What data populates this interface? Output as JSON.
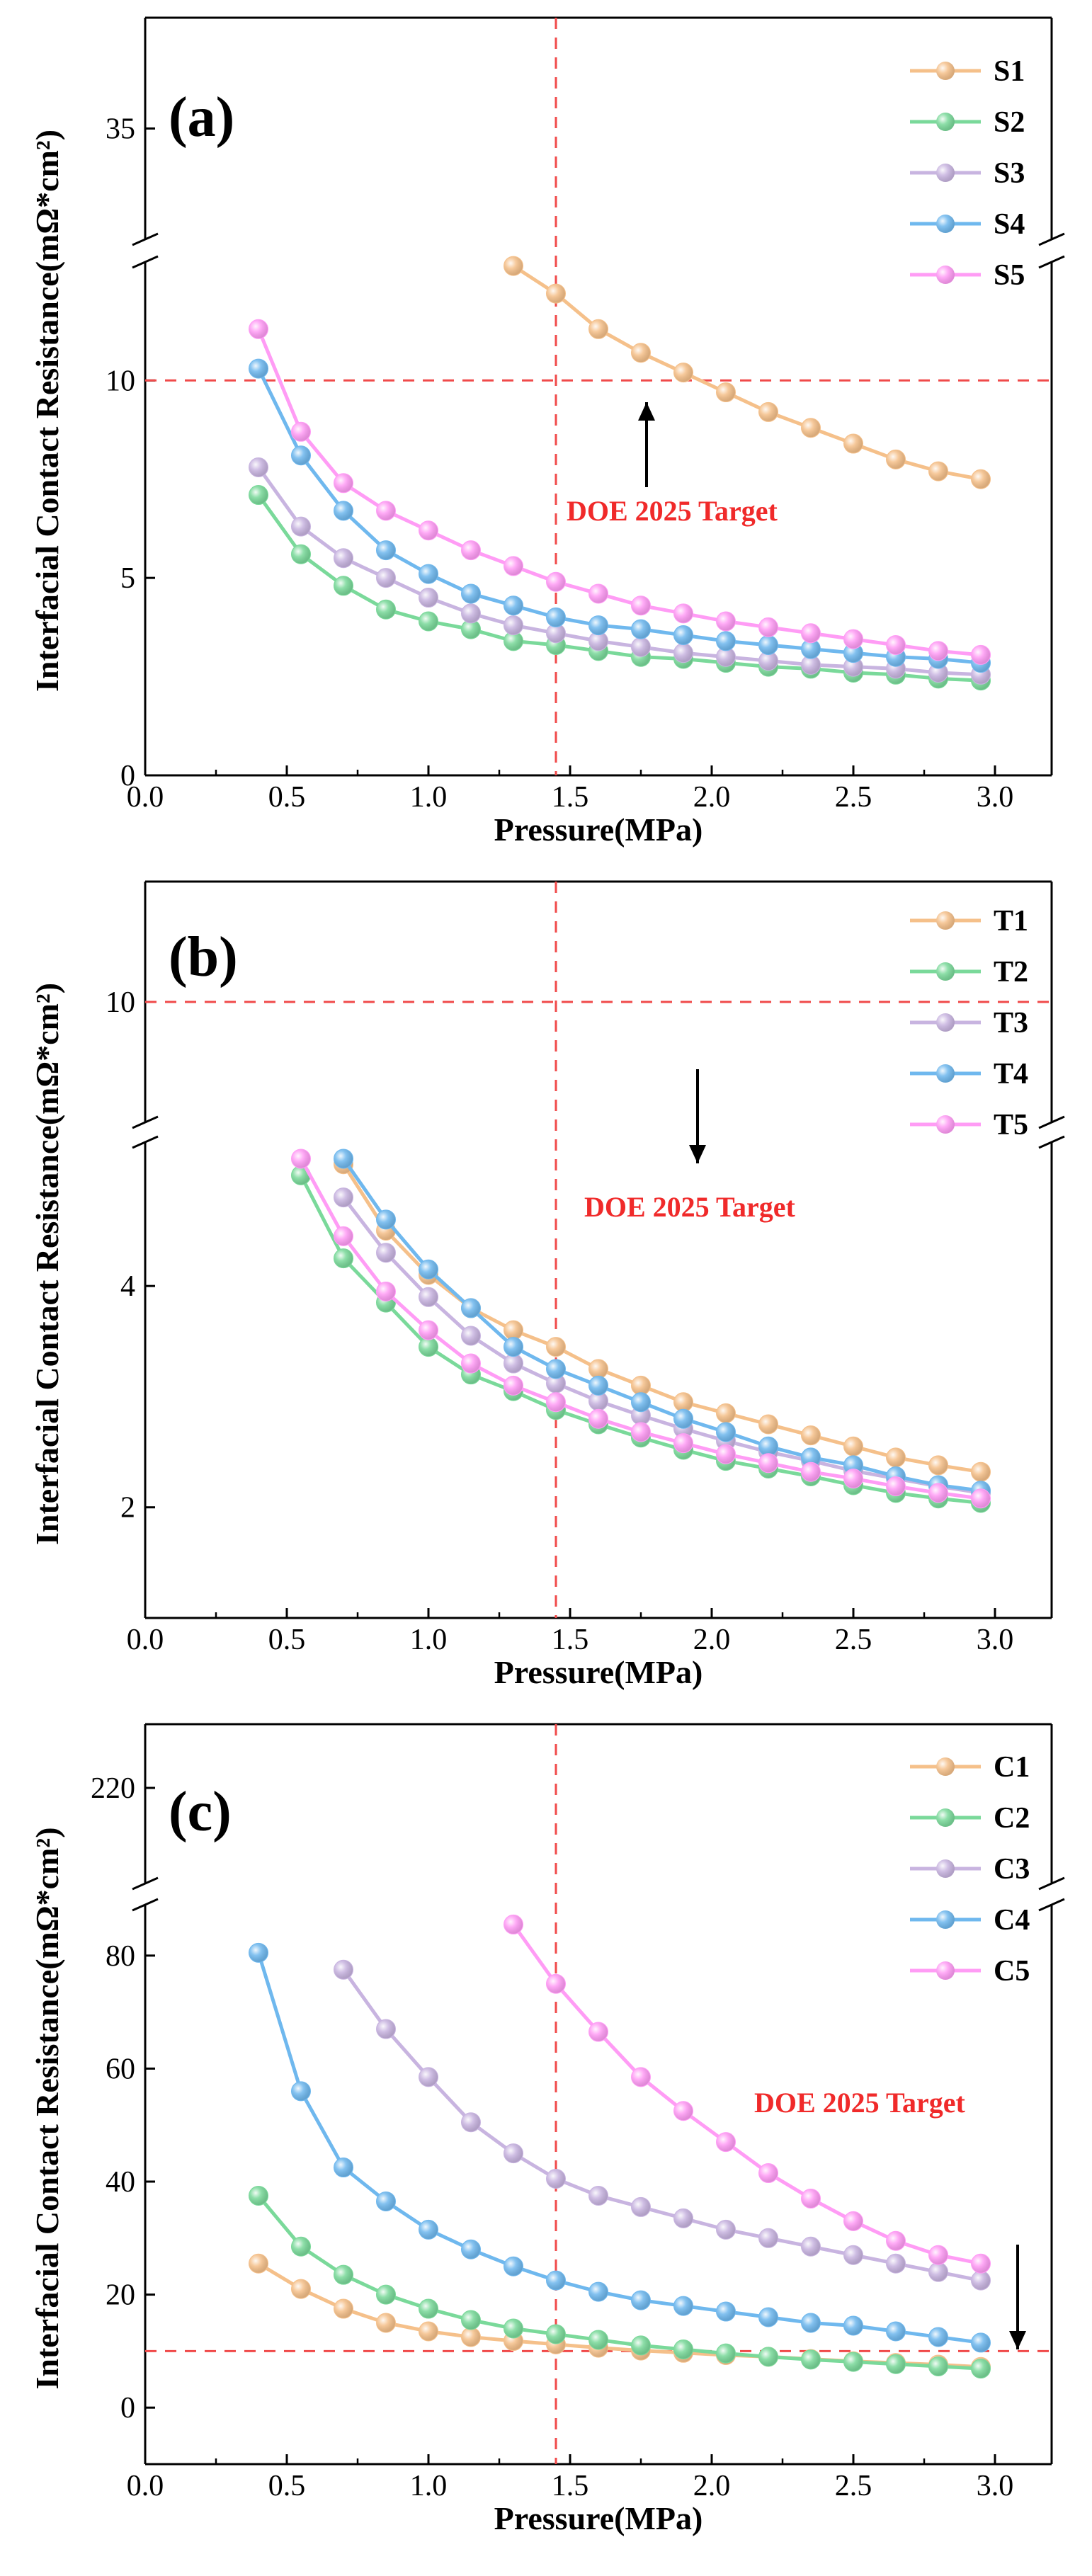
{
  "chart_data": [
    {
      "type": "line",
      "panel_label": "(a)",
      "xlabel": "Pressure(MPa)",
      "ylabel": "Interfacial Contact Resistance(mΩ*cm²)",
      "xlim": [
        0,
        3.2
      ],
      "x_ticks": [
        "0.0",
        "0.5",
        "1.0",
        "1.5",
        "2.0",
        "2.5",
        "3.0"
      ],
      "y_lower_range": [
        0,
        13
      ],
      "y_lower_ticks": [
        "0",
        "5",
        "10"
      ],
      "y_upper_range": [
        30,
        40
      ],
      "y_upper_ticks": [
        "35"
      ],
      "x": [
        0.4,
        0.55,
        0.7,
        0.85,
        1.0,
        1.15,
        1.3,
        1.45,
        1.6,
        1.75,
        1.9,
        2.05,
        2.2,
        2.35,
        2.5,
        2.65,
        2.8,
        2.95
      ],
      "series": [
        {
          "name": "S1",
          "color": "#f5c08a",
          "values": [
            null,
            null,
            null,
            null,
            null,
            null,
            12.9,
            12.2,
            11.3,
            10.7,
            10.2,
            9.7,
            9.2,
            8.8,
            8.4,
            8.0,
            7.7,
            7.5
          ]
        },
        {
          "name": "S2",
          "color": "#7ad99a",
          "values": [
            7.1,
            5.6,
            4.8,
            4.2,
            3.9,
            3.7,
            3.4,
            3.3,
            3.15,
            3.0,
            2.95,
            2.85,
            2.75,
            2.7,
            2.6,
            2.55,
            2.45,
            2.4
          ]
        },
        {
          "name": "S3",
          "color": "#c8b4e0",
          "values": [
            7.8,
            6.3,
            5.5,
            5.0,
            4.5,
            4.1,
            3.8,
            3.6,
            3.4,
            3.25,
            3.1,
            3.0,
            2.9,
            2.8,
            2.75,
            2.7,
            2.6,
            2.55
          ]
        },
        {
          "name": "S4",
          "color": "#6fb8ee",
          "values": [
            10.3,
            8.1,
            6.7,
            5.7,
            5.1,
            4.6,
            4.3,
            4.0,
            3.8,
            3.7,
            3.55,
            3.4,
            3.3,
            3.2,
            3.1,
            3.0,
            2.95,
            2.85
          ]
        },
        {
          "name": "S5",
          "color": "#ff9cf5",
          "values": [
            11.3,
            8.7,
            7.4,
            6.7,
            6.2,
            5.7,
            5.3,
            4.9,
            4.6,
            4.3,
            4.1,
            3.9,
            3.75,
            3.6,
            3.45,
            3.3,
            3.15,
            3.05
          ]
        }
      ],
      "reference_lines": {
        "vertical_x": 1.45,
        "horizontal_y": 10
      },
      "annotation": {
        "text": "DOE 2025 Target",
        "arrow_x": 1.77,
        "arrow_direction": "up"
      },
      "legend_position": "top-right"
    },
    {
      "type": "line",
      "panel_label": "(b)",
      "xlabel": "Pressure(MPa)",
      "ylabel": "Interfacial Contact Resistance(mΩ*cm²)",
      "xlim": [
        0,
        3.2
      ],
      "x_ticks": [
        "0.0",
        "0.5",
        "1.0",
        "1.5",
        "2.0",
        "2.5",
        "3.0"
      ],
      "y_lower_range": [
        1,
        5.3
      ],
      "y_lower_ticks": [
        "2",
        "4"
      ],
      "y_upper_range": [
        8,
        12
      ],
      "y_upper_ticks": [
        "10"
      ],
      "x": [
        0.55,
        0.7,
        0.85,
        1.0,
        1.15,
        1.3,
        1.45,
        1.6,
        1.75,
        1.9,
        2.05,
        2.2,
        2.35,
        2.5,
        2.65,
        2.8,
        2.95
      ],
      "series": [
        {
          "name": "T1",
          "color": "#f5c08a",
          "values": [
            null,
            5.1,
            4.5,
            4.1,
            3.8,
            3.6,
            3.45,
            3.25,
            3.1,
            2.95,
            2.85,
            2.75,
            2.65,
            2.55,
            2.45,
            2.38,
            2.32
          ]
        },
        {
          "name": "T2",
          "color": "#7ad99a",
          "values": [
            5.0,
            4.25,
            3.85,
            3.45,
            3.2,
            3.05,
            2.88,
            2.75,
            2.63,
            2.52,
            2.42,
            2.35,
            2.28,
            2.2,
            2.13,
            2.08,
            2.04
          ]
        },
        {
          "name": "T3",
          "color": "#c8b4e0",
          "values": [
            null,
            4.8,
            4.3,
            3.9,
            3.55,
            3.3,
            3.12,
            2.96,
            2.83,
            2.71,
            2.6,
            2.5,
            2.42,
            2.33,
            2.26,
            2.19,
            2.13
          ]
        },
        {
          "name": "T4",
          "color": "#6fb8ee",
          "values": [
            null,
            5.15,
            4.6,
            4.15,
            3.8,
            3.45,
            3.25,
            3.1,
            2.95,
            2.8,
            2.68,
            2.55,
            2.45,
            2.38,
            2.28,
            2.2,
            2.15
          ]
        },
        {
          "name": "T5",
          "color": "#ff9cf5",
          "values": [
            5.15,
            4.45,
            3.95,
            3.6,
            3.3,
            3.1,
            2.95,
            2.8,
            2.68,
            2.58,
            2.48,
            2.4,
            2.32,
            2.26,
            2.19,
            2.13,
            2.08
          ]
        }
      ],
      "reference_lines": {
        "vertical_x": 1.45,
        "horizontal_y": 10
      },
      "annotation": {
        "text": "DOE 2025 Target",
        "arrow_x": 1.95,
        "arrow_direction": "down"
      },
      "legend_position": "top-right"
    },
    {
      "type": "line",
      "panel_label": "(c)",
      "xlabel": "Pressure(MPa)",
      "ylabel": "Interfacial Contact Resistance(mΩ*cm²)",
      "xlim": [
        0,
        3.2
      ],
      "x_ticks": [
        "0.0",
        "0.5",
        "1.0",
        "1.5",
        "2.0",
        "2.5",
        "3.0"
      ],
      "y_lower_range": [
        -10,
        89
      ],
      "y_lower_ticks": [
        "0",
        "20",
        "40",
        "60",
        "80"
      ],
      "y_upper_range": [
        205,
        230
      ],
      "y_upper_ticks": [
        "220"
      ],
      "x": [
        0.4,
        0.55,
        0.7,
        0.85,
        1.0,
        1.15,
        1.3,
        1.45,
        1.6,
        1.75,
        1.9,
        2.05,
        2.2,
        2.35,
        2.5,
        2.65,
        2.8,
        2.95
      ],
      "series": [
        {
          "name": "C1",
          "color": "#f5c08a",
          "values": [
            25.5,
            21,
            17.5,
            15,
            13.5,
            12.5,
            11.8,
            11.2,
            10.6,
            10.1,
            9.7,
            9.3,
            9.0,
            8.6,
            8.2,
            7.9,
            7.6,
            7.2
          ]
        },
        {
          "name": "C2",
          "color": "#7ad99a",
          "values": [
            37.5,
            28.5,
            23.5,
            20,
            17.5,
            15.5,
            14,
            13,
            12,
            11,
            10.3,
            9.6,
            9.0,
            8.5,
            8.1,
            7.7,
            7.3,
            6.9
          ]
        },
        {
          "name": "C3",
          "color": "#c8b4e0",
          "values": [
            null,
            null,
            77.5,
            67,
            58.5,
            50.5,
            45,
            40.5,
            37.5,
            35.5,
            33.5,
            31.5,
            30,
            28.5,
            27,
            25.5,
            24,
            22.5
          ]
        },
        {
          "name": "C4",
          "color": "#6fb8ee",
          "values": [
            80.5,
            56,
            42.5,
            36.5,
            31.5,
            28,
            25,
            22.5,
            20.5,
            19,
            18,
            17,
            16,
            15,
            14.5,
            13.5,
            12.5,
            11.5
          ]
        },
        {
          "name": "C5",
          "color": "#ff9cf5",
          "values": [
            null,
            null,
            null,
            null,
            null,
            null,
            85.5,
            75,
            66.5,
            58.5,
            52.5,
            47,
            41.5,
            37,
            33,
            29.5,
            27,
            25.5
          ]
        }
      ],
      "reference_lines": {
        "vertical_x": 1.45,
        "horizontal_y": 10
      },
      "annotation": {
        "text": "DOE 2025 Target",
        "arrow_x": 3.08,
        "arrow_direction": "down"
      },
      "legend_position": "top-right"
    }
  ]
}
